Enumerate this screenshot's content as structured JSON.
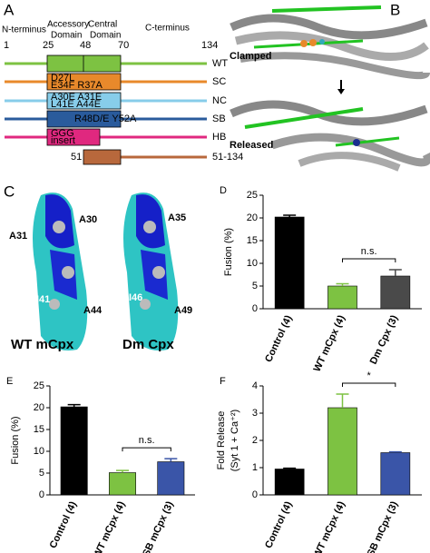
{
  "panel_a": {
    "label": "A",
    "n_terminus": "N-terminus",
    "accessory": [
      "Accessory",
      "Domain"
    ],
    "central": [
      "Central",
      "Domain"
    ],
    "c_terminus": "C-terminus",
    "positions": [
      "1",
      "25",
      "48",
      "70",
      "134"
    ],
    "constructs": [
      {
        "name": "WT",
        "color": "#7dc242",
        "box_text": []
      },
      {
        "name": "SC",
        "color": "#e8892b",
        "box_text": [
          "D27L",
          "E34F R37A"
        ]
      },
      {
        "name": "NC",
        "color": "#87cdea",
        "box_text": [
          "A30E A31E",
          "L41E A44E"
        ]
      },
      {
        "name": "SB",
        "color": "#2a5b9c",
        "box_text": [
          "R48D/E Y52A"
        ]
      },
      {
        "name": "HB",
        "color": "#e0287f",
        "box_text": [
          "GGG",
          "insert"
        ]
      },
      {
        "name": "51-134",
        "color": "#b8683c",
        "box_text": [],
        "start_label": "51"
      }
    ]
  },
  "panel_b": {
    "label": "B",
    "states": [
      "Clamped",
      "Released"
    ]
  },
  "panel_c": {
    "label": "C",
    "structures": [
      {
        "title": "WT mCpx",
        "residues": [
          "A31",
          "A30",
          "I41",
          "A44"
        ]
      },
      {
        "title": "Dm Cpx",
        "residues": [
          "A35",
          "I46",
          "A49"
        ]
      }
    ]
  },
  "chart_data": [
    {
      "type": "bar",
      "panel_label": "D",
      "ylabel": [
        "Fusion (%)"
      ],
      "categories": [
        "Control (4)",
        "WT mCpx (4)",
        "Dm Cpx (3)"
      ],
      "values": [
        20.2,
        5,
        7.2
      ],
      "errors": [
        0.4,
        0.5,
        1.4
      ],
      "colors": [
        "#000000",
        "#7dc242",
        "#4a4a4a"
      ],
      "ylim": [
        0,
        25
      ],
      "yticks": [
        0,
        5,
        10,
        15,
        20,
        25
      ],
      "annotation": "n.s."
    },
    {
      "type": "bar",
      "panel_label": "E",
      "ylabel": [
        "Fusion (%)"
      ],
      "categories": [
        "Control (4)",
        "WT mCpx (4)",
        "SB mCpx (3)"
      ],
      "values": [
        20.2,
        5.1,
        7.6
      ],
      "errors": [
        0.5,
        0.5,
        0.7
      ],
      "colors": [
        "#000000",
        "#7dc242",
        "#3a55a8"
      ],
      "ylim": [
        0,
        25
      ],
      "yticks": [
        0,
        5,
        10,
        15,
        20,
        25
      ],
      "annotation": "n.s."
    },
    {
      "type": "bar",
      "panel_label": "F",
      "ylabel": [
        "Fold Release",
        "(Syt 1 + Ca⁺²)"
      ],
      "categories": [
        "Control (4)",
        "WT mCpx (4)",
        "SB mCpx (3)"
      ],
      "values": [
        0.95,
        3.2,
        1.55
      ],
      "errors": [
        0.03,
        0.5,
        0.03
      ],
      "colors": [
        "#000000",
        "#7dc242",
        "#3a55a8"
      ],
      "ylim": [
        0,
        4
      ],
      "yticks": [
        0,
        1,
        2,
        3,
        4
      ],
      "annotation": "*"
    }
  ]
}
